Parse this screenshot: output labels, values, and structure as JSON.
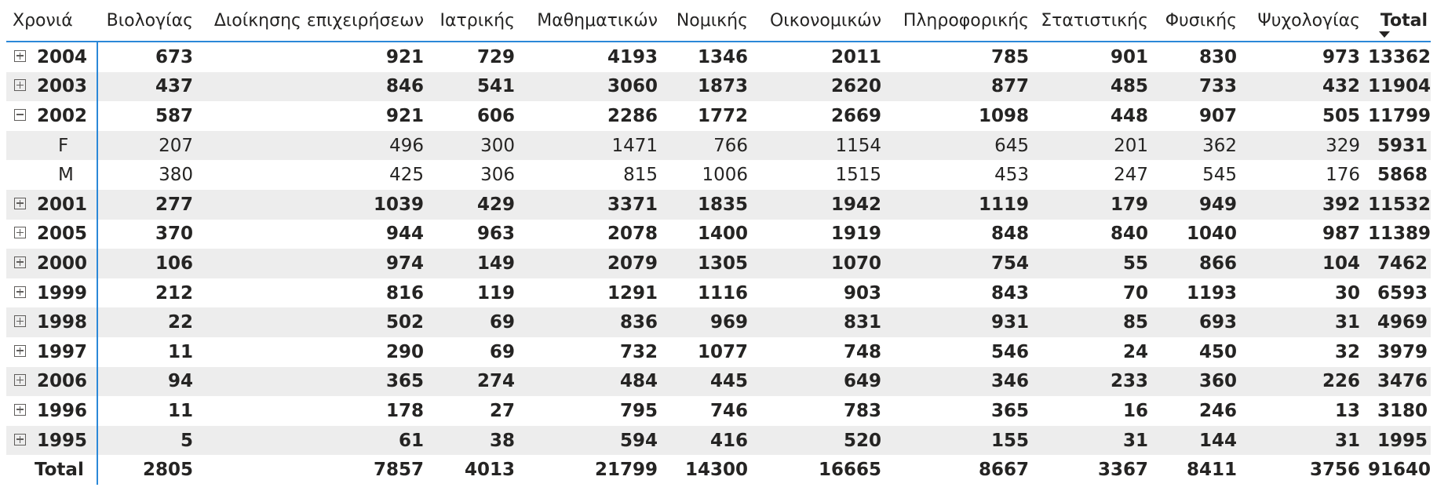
{
  "matrix": {
    "headers": [
      "Χρονιά",
      "Βιολογίας",
      "Διοίκησης επιχειρήσεων",
      "Ιατρικής",
      "Μαθηματικών",
      "Νομικής",
      "Οικονομικών",
      "Πληροφορικής",
      "Στατιστικής",
      "Φυσικής",
      "Ψυχολογίας",
      "Total"
    ],
    "sort_column": "Total",
    "sort_direction": "descending",
    "rows": [
      {
        "label": "2004",
        "level": 0,
        "expanded": false,
        "values": [
          "673",
          "921",
          "729",
          "4193",
          "1346",
          "2011",
          "785",
          "901",
          "830",
          "973",
          "13362"
        ]
      },
      {
        "label": "2003",
        "level": 0,
        "expanded": false,
        "values": [
          "437",
          "846",
          "541",
          "3060",
          "1873",
          "2620",
          "877",
          "485",
          "733",
          "432",
          "11904"
        ]
      },
      {
        "label": "2002",
        "level": 0,
        "expanded": true,
        "values": [
          "587",
          "921",
          "606",
          "2286",
          "1772",
          "2669",
          "1098",
          "448",
          "907",
          "505",
          "11799"
        ]
      },
      {
        "label": "F",
        "level": 1,
        "values": [
          "207",
          "496",
          "300",
          "1471",
          "766",
          "1154",
          "645",
          "201",
          "362",
          "329",
          "5931"
        ]
      },
      {
        "label": "M",
        "level": 1,
        "values": [
          "380",
          "425",
          "306",
          "815",
          "1006",
          "1515",
          "453",
          "247",
          "545",
          "176",
          "5868"
        ]
      },
      {
        "label": "2001",
        "level": 0,
        "expanded": false,
        "values": [
          "277",
          "1039",
          "429",
          "3371",
          "1835",
          "1942",
          "1119",
          "179",
          "949",
          "392",
          "11532"
        ]
      },
      {
        "label": "2005",
        "level": 0,
        "expanded": false,
        "values": [
          "370",
          "944",
          "963",
          "2078",
          "1400",
          "1919",
          "848",
          "840",
          "1040",
          "987",
          "11389"
        ]
      },
      {
        "label": "2000",
        "level": 0,
        "expanded": false,
        "values": [
          "106",
          "974",
          "149",
          "2079",
          "1305",
          "1070",
          "754",
          "55",
          "866",
          "104",
          "7462"
        ]
      },
      {
        "label": "1999",
        "level": 0,
        "expanded": false,
        "values": [
          "212",
          "816",
          "119",
          "1291",
          "1116",
          "903",
          "843",
          "70",
          "1193",
          "30",
          "6593"
        ]
      },
      {
        "label": "1998",
        "level": 0,
        "expanded": false,
        "values": [
          "22",
          "502",
          "69",
          "836",
          "969",
          "831",
          "931",
          "85",
          "693",
          "31",
          "4969"
        ]
      },
      {
        "label": "1997",
        "level": 0,
        "expanded": false,
        "values": [
          "11",
          "290",
          "69",
          "732",
          "1077",
          "748",
          "546",
          "24",
          "450",
          "32",
          "3979"
        ]
      },
      {
        "label": "2006",
        "level": 0,
        "expanded": false,
        "values": [
          "94",
          "365",
          "274",
          "484",
          "445",
          "649",
          "346",
          "233",
          "360",
          "226",
          "3476"
        ]
      },
      {
        "label": "1996",
        "level": 0,
        "expanded": false,
        "values": [
          "11",
          "178",
          "27",
          "795",
          "746",
          "783",
          "365",
          "16",
          "246",
          "13",
          "3180"
        ]
      },
      {
        "label": "1995",
        "level": 0,
        "expanded": false,
        "values": [
          "5",
          "61",
          "38",
          "594",
          "416",
          "520",
          "155",
          "31",
          "144",
          "31",
          "1995"
        ]
      }
    ],
    "grand_total": {
      "label": "Total",
      "values": [
        "2805",
        "7857",
        "4013",
        "21799",
        "14300",
        "16665",
        "8667",
        "3367",
        "8411",
        "3756",
        "91640"
      ]
    },
    "colors": {
      "accent_border": "#2b88d8",
      "row_shade": "#ededed",
      "text": "#252423"
    },
    "icons": {
      "collapsed": "expand-plus-icon",
      "expanded": "collapse-minus-icon",
      "sort": "sort-descending-icon"
    }
  }
}
